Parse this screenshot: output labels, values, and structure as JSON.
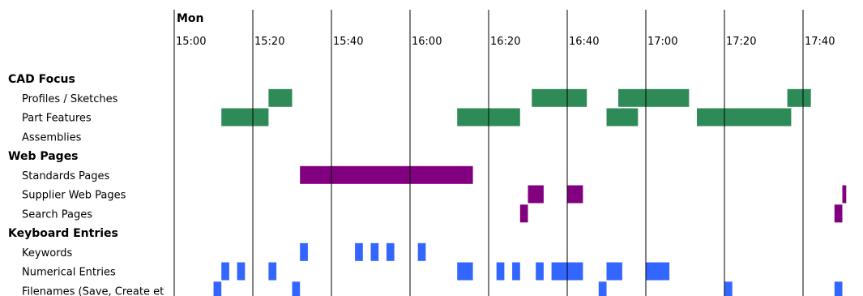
{
  "chart_data": {
    "type": "timeline",
    "day_label": "Mon",
    "x_axis": {
      "start": "15:00",
      "end": "17:50",
      "tick_labels": [
        "15:00",
        "15:20",
        "15:40",
        "16:00",
        "16:20",
        "16:40",
        "17:00",
        "17:20",
        "17:40"
      ]
    },
    "groups": [
      {
        "label": "CAD Focus",
        "color": "#2e8b57",
        "rows": [
          {
            "label": "Profiles / Sketches",
            "intervals": [
              [
                "15:24",
                "15:30"
              ],
              [
                "16:31",
                "16:45"
              ],
              [
                "16:53",
                "17:11"
              ],
              [
                "17:36",
                "17:42"
              ]
            ]
          },
          {
            "label": "Part Features",
            "intervals": [
              [
                "15:12",
                "15:24"
              ],
              [
                "16:12",
                "16:28"
              ],
              [
                "16:50",
                "16:58"
              ],
              [
                "17:13",
                "17:37"
              ]
            ]
          },
          {
            "label": "Assemblies",
            "intervals": []
          }
        ]
      },
      {
        "label": "Web Pages",
        "color": "#800080",
        "rows": [
          {
            "label": "Standards Pages",
            "intervals": [
              [
                "15:32",
                "16:16"
              ]
            ]
          },
          {
            "label": "Supplier Web Pages",
            "intervals": [
              [
                "16:30",
                "16:34"
              ],
              [
                "16:40",
                "16:44"
              ],
              [
                "17:50",
                "17:51"
              ]
            ]
          },
          {
            "label": "Search Pages",
            "intervals": [
              [
                "16:28",
                "16:30"
              ],
              [
                "17:48",
                "17:50"
              ]
            ]
          }
        ]
      },
      {
        "label": "Keyboard Entries",
        "color": "#3366ff",
        "rows": [
          {
            "label": "Keywords",
            "intervals": [
              [
                "15:32",
                "15:34"
              ],
              [
                "15:46",
                "15:48"
              ],
              [
                "15:50",
                "15:52"
              ],
              [
                "15:54",
                "15:56"
              ],
              [
                "16:02",
                "16:04"
              ]
            ]
          },
          {
            "label": "Numerical Entries",
            "intervals": [
              [
                "15:12",
                "15:14"
              ],
              [
                "15:16",
                "15:18"
              ],
              [
                "15:24",
                "15:26"
              ],
              [
                "16:12",
                "16:16"
              ],
              [
                "16:22",
                "16:24"
              ],
              [
                "16:26",
                "16:28"
              ],
              [
                "16:32",
                "16:34"
              ],
              [
                "16:36",
                "16:44"
              ],
              [
                "16:50",
                "16:54"
              ],
              [
                "17:00",
                "17:06"
              ]
            ]
          },
          {
            "label": "Filenames (Save, Create et",
            "intervals": [
              [
                "15:10",
                "15:12"
              ],
              [
                "15:30",
                "15:32"
              ],
              [
                "16:48",
                "16:50"
              ],
              [
                "17:20",
                "17:22"
              ],
              [
                "17:48",
                "17:50"
              ]
            ]
          }
        ]
      }
    ]
  }
}
